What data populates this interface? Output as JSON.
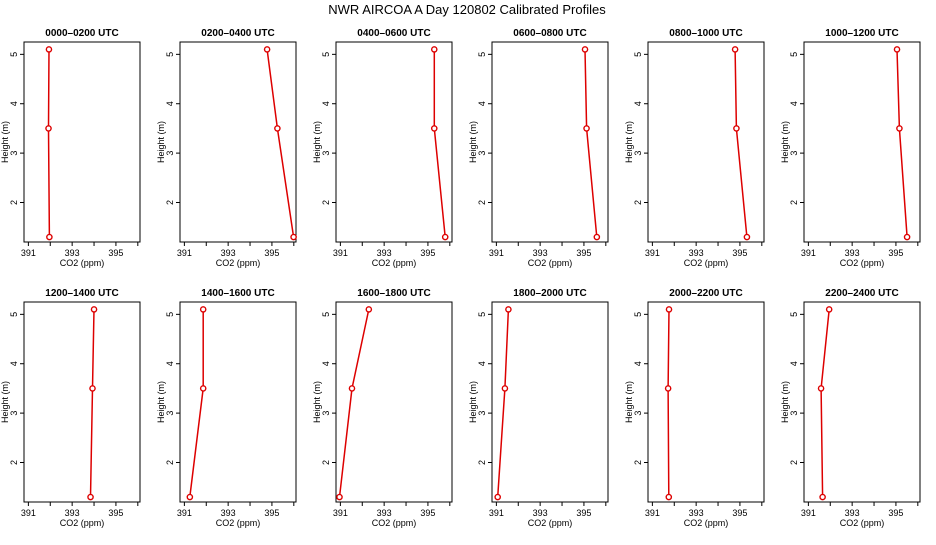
{
  "title": "NWR AIRCOA A  Day 120802  Calibrated Profiles",
  "colors": {
    "series": "#dd0000",
    "axis": "#000000"
  },
  "chart_data": [
    {
      "type": "line",
      "title": "0000–0200 UTC",
      "xlabel": "CO2 (ppm)",
      "ylabel": "Height (m)",
      "x_ticks": [
        "391",
        "393",
        "395"
      ],
      "y_ticks": [
        "2",
        "3",
        "4",
        "5"
      ],
      "xlim": [
        390.8,
        396.1
      ],
      "ylim": [
        1.2,
        5.25
      ],
      "series": [
        {
          "x": [
            391.94,
            391.92,
            391.96
          ],
          "y": [
            5.1,
            3.5,
            1.3
          ]
        }
      ]
    },
    {
      "type": "line",
      "title": "0200–0400 UTC",
      "xlabel": "CO2 (ppm)",
      "ylabel": "Height (m)",
      "x_ticks": [
        "391",
        "393",
        "395"
      ],
      "y_ticks": [
        "2",
        "3",
        "4",
        "5"
      ],
      "xlim": [
        390.8,
        396.1
      ],
      "ylim": [
        1.2,
        5.25
      ],
      "series": [
        {
          "x": [
            394.78,
            395.25,
            395.99
          ],
          "y": [
            5.1,
            3.5,
            1.3
          ]
        }
      ]
    },
    {
      "type": "line",
      "title": "0400–0600 UTC",
      "xlabel": "CO2 (ppm)",
      "ylabel": "Height (m)",
      "x_ticks": [
        "391",
        "393",
        "395"
      ],
      "y_ticks": [
        "2",
        "3",
        "4",
        "5"
      ],
      "xlim": [
        390.8,
        396.1
      ],
      "ylim": [
        1.2,
        5.25
      ],
      "series": [
        {
          "x": [
            395.29,
            395.29,
            395.79
          ],
          "y": [
            5.1,
            3.5,
            1.3
          ]
        }
      ]
    },
    {
      "type": "line",
      "title": "0600–0800 UTC",
      "xlabel": "CO2 (ppm)",
      "ylabel": "Height (m)",
      "x_ticks": [
        "391",
        "393",
        "395"
      ],
      "y_ticks": [
        "2",
        "3",
        "4",
        "5"
      ],
      "xlim": [
        390.8,
        396.1
      ],
      "ylim": [
        1.2,
        5.25
      ],
      "series": [
        {
          "x": [
            395.05,
            395.12,
            395.59
          ],
          "y": [
            5.1,
            3.5,
            1.3
          ]
        }
      ]
    },
    {
      "type": "line",
      "title": "0800–1000 UTC",
      "xlabel": "CO2 (ppm)",
      "ylabel": "Height (m)",
      "x_ticks": [
        "391",
        "393",
        "395"
      ],
      "y_ticks": [
        "2",
        "3",
        "4",
        "5"
      ],
      "xlim": [
        390.8,
        396.1
      ],
      "ylim": [
        1.2,
        5.25
      ],
      "series": [
        {
          "x": [
            394.78,
            394.84,
            395.32
          ],
          "y": [
            5.1,
            3.5,
            1.3
          ]
        }
      ]
    },
    {
      "type": "line",
      "title": "1000–1200 UTC",
      "xlabel": "CO2 (ppm)",
      "ylabel": "Height (m)",
      "x_ticks": [
        "391",
        "393",
        "395"
      ],
      "y_ticks": [
        "2",
        "3",
        "4",
        "5"
      ],
      "xlim": [
        390.8,
        396.1
      ],
      "ylim": [
        1.2,
        5.25
      ],
      "series": [
        {
          "x": [
            395.05,
            395.16,
            395.51
          ],
          "y": [
            5.1,
            3.5,
            1.3
          ]
        }
      ]
    },
    {
      "type": "line",
      "title": "1200–1400 UTC",
      "xlabel": "CO2 (ppm)",
      "ylabel": "Height (m)",
      "x_ticks": [
        "391",
        "393",
        "395"
      ],
      "y_ticks": [
        "2",
        "3",
        "4",
        "5"
      ],
      "xlim": [
        390.8,
        396.1
      ],
      "ylim": [
        1.2,
        5.25
      ],
      "series": [
        {
          "x": [
            394.0,
            393.93,
            393.84
          ],
          "y": [
            5.1,
            3.5,
            1.3
          ]
        }
      ]
    },
    {
      "type": "line",
      "title": "1400–1600 UTC",
      "xlabel": "CO2 (ppm)",
      "ylabel": "Height (m)",
      "x_ticks": [
        "391",
        "393",
        "395"
      ],
      "y_ticks": [
        "2",
        "3",
        "4",
        "5"
      ],
      "xlim": [
        390.8,
        396.1
      ],
      "ylim": [
        1.2,
        5.25
      ],
      "series": [
        {
          "x": [
            391.86,
            391.86,
            391.25
          ],
          "y": [
            5.1,
            3.5,
            1.3
          ]
        }
      ]
    },
    {
      "type": "line",
      "title": "1600–1800 UTC",
      "xlabel": "CO2 (ppm)",
      "ylabel": "Height (m)",
      "x_ticks": [
        "391",
        "393",
        "395"
      ],
      "y_ticks": [
        "2",
        "3",
        "4",
        "5"
      ],
      "xlim": [
        390.8,
        396.1
      ],
      "ylim": [
        1.2,
        5.25
      ],
      "series": [
        {
          "x": [
            392.3,
            391.53,
            390.96
          ],
          "y": [
            5.1,
            3.5,
            1.3
          ]
        }
      ]
    },
    {
      "type": "line",
      "title": "1800–2000 UTC",
      "xlabel": "CO2 (ppm)",
      "ylabel": "Height (m)",
      "x_ticks": [
        "391",
        "393",
        "395"
      ],
      "y_ticks": [
        "2",
        "3",
        "4",
        "5"
      ],
      "xlim": [
        390.8,
        396.1
      ],
      "ylim": [
        1.2,
        5.25
      ],
      "series": [
        {
          "x": [
            391.55,
            391.39,
            391.06
          ],
          "y": [
            5.1,
            3.5,
            1.3
          ]
        }
      ]
    },
    {
      "type": "line",
      "title": "2000–2200 UTC",
      "xlabel": "CO2 (ppm)",
      "ylabel": "Height (m)",
      "x_ticks": [
        "391",
        "393",
        "395"
      ],
      "y_ticks": [
        "2",
        "3",
        "4",
        "5"
      ],
      "xlim": [
        390.8,
        396.1
      ],
      "ylim": [
        1.2,
        5.25
      ],
      "series": [
        {
          "x": [
            391.76,
            391.72,
            391.75
          ],
          "y": [
            5.1,
            3.5,
            1.3
          ]
        }
      ]
    },
    {
      "type": "line",
      "title": "2200–2400 UTC",
      "xlabel": "CO2 (ppm)",
      "ylabel": "Height (m)",
      "x_ticks": [
        "391",
        "393",
        "395"
      ],
      "y_ticks": [
        "2",
        "3",
        "4",
        "5"
      ],
      "xlim": [
        390.8,
        396.1
      ],
      "ylim": [
        1.2,
        5.25
      ],
      "series": [
        {
          "x": [
            391.95,
            391.58,
            391.65
          ],
          "y": [
            5.1,
            3.5,
            1.3
          ]
        }
      ]
    }
  ]
}
